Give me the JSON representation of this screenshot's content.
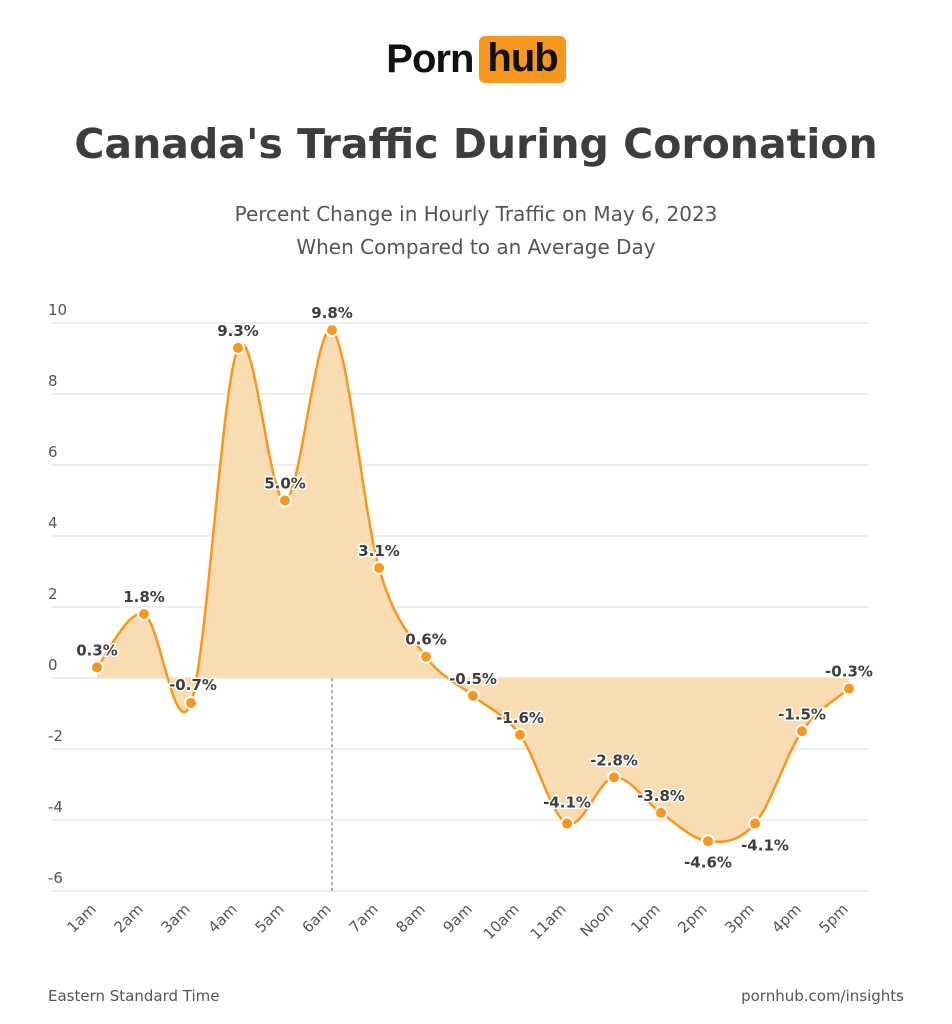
{
  "logo": {
    "part1": "Porn",
    "part2": "hub"
  },
  "title": "Canada's Traffic During Coronation",
  "subtitle_line1": "Percent Change in Hourly Traffic on May 6, 2023",
  "subtitle_line2": "When Compared to an Average Day",
  "footer": {
    "left": "Eastern Standard Time",
    "right": "pornhub.com/insights"
  },
  "colors": {
    "accent": "#f7971d",
    "fill": "#f9dcb2",
    "text": "#3d3d3d"
  },
  "chart_data": {
    "type": "area",
    "categories": [
      "1am",
      "2am",
      "3am",
      "4am",
      "5am",
      "6am",
      "7am",
      "8am",
      "9am",
      "10am",
      "11am",
      "Noon",
      "1pm",
      "2pm",
      "3pm",
      "4pm",
      "5pm"
    ],
    "values": [
      0.3,
      1.8,
      -0.7,
      9.3,
      5.0,
      9.8,
      3.1,
      0.6,
      -0.5,
      -1.6,
      -4.1,
      -2.8,
      -3.8,
      -4.6,
      -4.1,
      -1.5,
      -0.3
    ],
    "labels": [
      "0.3%",
      "1.8%",
      "-0.7%",
      "9.3%",
      "5.0%",
      "9.8%",
      "3.1%",
      "0.6%",
      "-0.5%",
      "-1.6%",
      "-4.1%",
      "-2.8%",
      "-3.8%",
      "-4.6%",
      "-4.1%",
      "-1.5%",
      "-0.3%"
    ],
    "ylim": [
      -6,
      10
    ],
    "yticks": [
      10,
      8,
      6,
      4,
      2,
      0,
      -2,
      -4,
      -6
    ],
    "grid": true,
    "highlight_category": "6am"
  }
}
